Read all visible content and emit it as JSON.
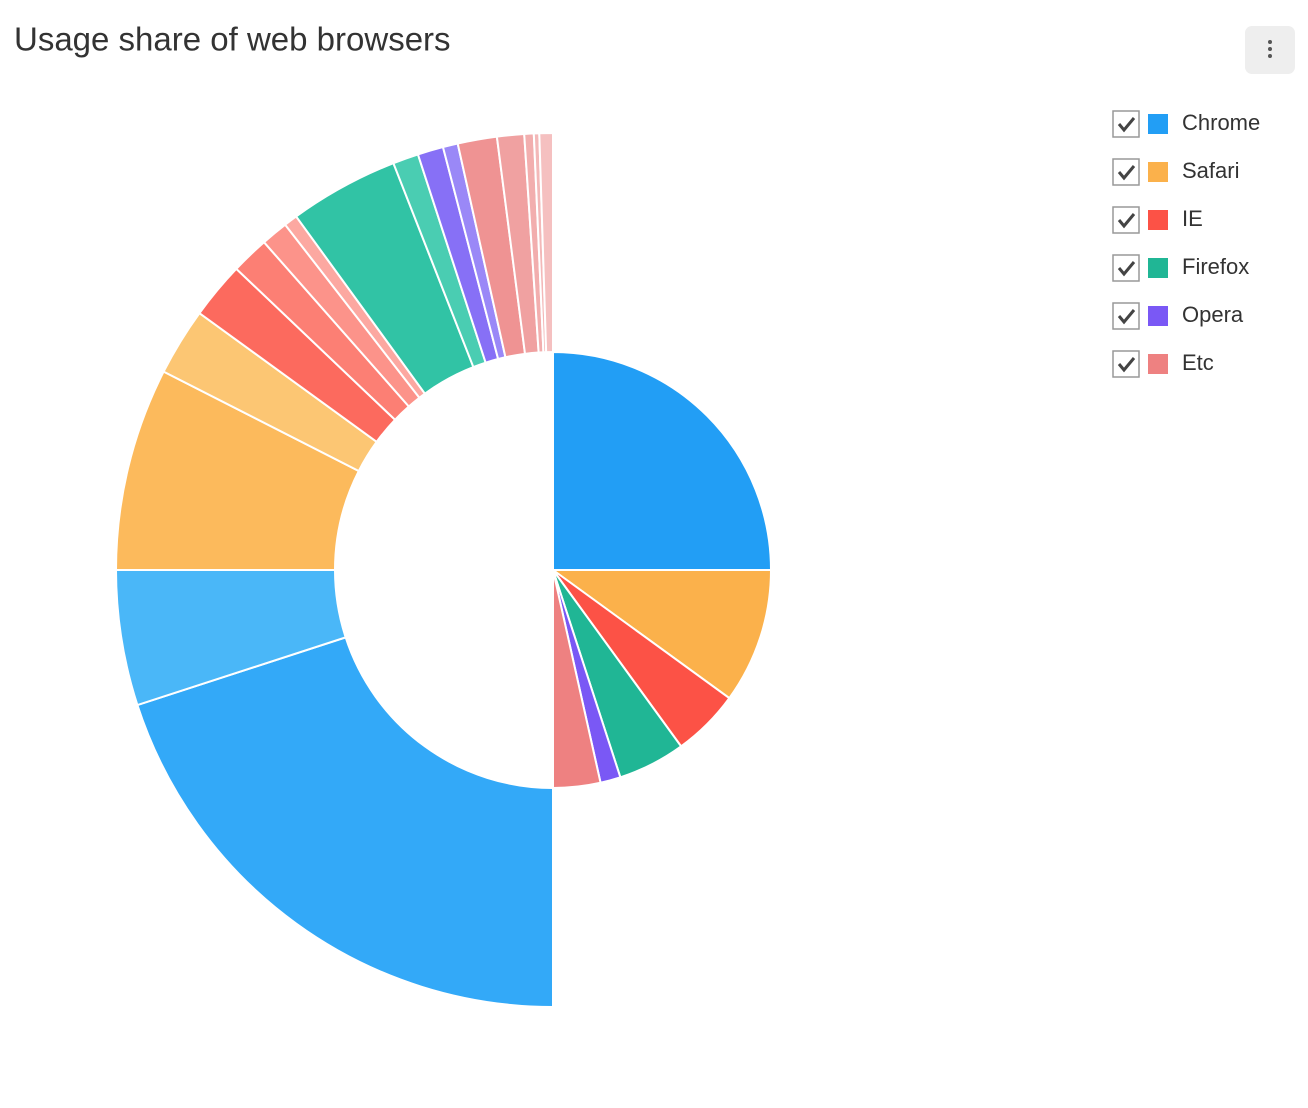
{
  "chart_data": {
    "type": "nested-pie",
    "title": "Usage share of web browsers",
    "series": [
      {
        "name": "Chrome",
        "color": "#229ef5",
        "value": 50,
        "detail_values": [
          40,
          10
        ],
        "detail_colors": [
          "#33a9f8",
          "#4ab7f8"
        ]
      },
      {
        "name": "Safari",
        "color": "#fbb14b",
        "value": 20,
        "detail_values": [
          15,
          5
        ],
        "detail_colors": [
          "#fcba5c",
          "#fcc673"
        ]
      },
      {
        "name": "IE",
        "color": "#fc5246",
        "value": 10,
        "detail_values": [
          4.2,
          2.8,
          2,
          1
        ],
        "detail_colors": [
          "#fc6a5e",
          "#fc7f74",
          "#fc938a",
          "#fca8a1"
        ]
      },
      {
        "name": "Firefox",
        "color": "#20b695",
        "value": 10,
        "detail_values": [
          8.1,
          1.9
        ],
        "detail_colors": [
          "#31c3a5",
          "#4acdb2"
        ]
      },
      {
        "name": "Opera",
        "color": "#7a58f5",
        "value": 3,
        "detail_values": [
          1.9,
          1.1
        ],
        "detail_colors": [
          "#8770f6",
          "#9a88f7"
        ]
      },
      {
        "name": "Etc",
        "color": "#ee8181",
        "value": 7,
        "detail_values": [
          2.9,
          2,
          0.7,
          0.4,
          1
        ],
        "detail_colors": [
          "#ef9393",
          "#f0a1a1",
          "#f2aeae",
          "#f3b8b8",
          "#f5c0c0"
        ]
      }
    ]
  }
}
